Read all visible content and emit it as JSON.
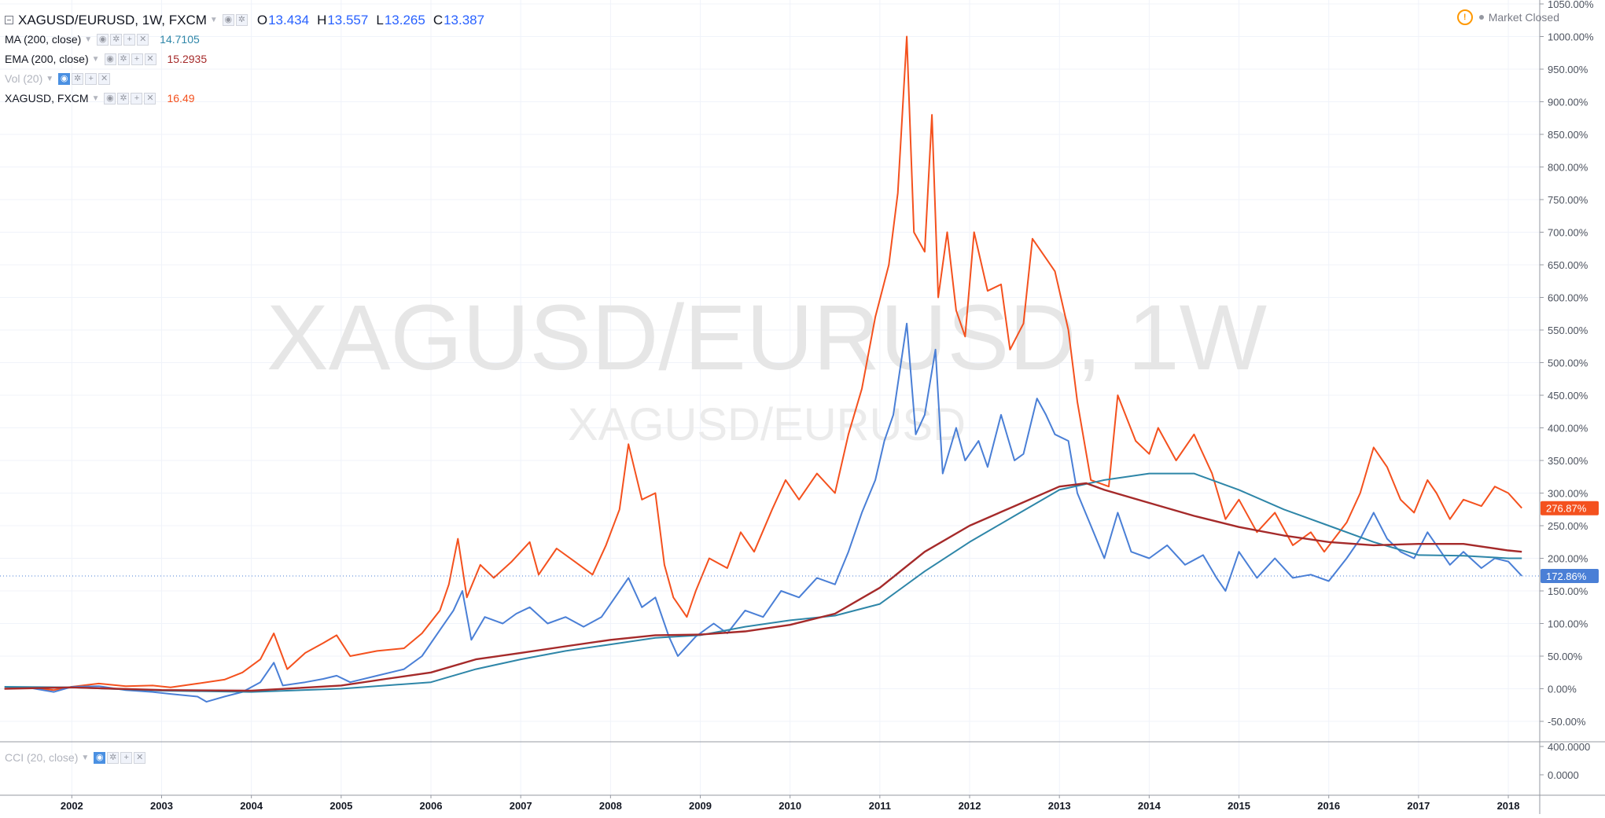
{
  "header": {
    "symbol": "XAGUSD/EURUSD, 1W, FXCM",
    "ohlc": [
      {
        "k": "O",
        "v": "13.434"
      },
      {
        "k": "H",
        "v": "13.557"
      },
      {
        "k": "L",
        "v": "13.265"
      },
      {
        "k": "C",
        "v": "13.387"
      }
    ]
  },
  "indicators": [
    {
      "label": "MA (200, close)",
      "value": "14.7105",
      "color": "#2e86a8"
    },
    {
      "label": "EMA (200, close)",
      "value": "15.2935",
      "color": "#a52a2a"
    },
    {
      "label": "Vol (20)",
      "value": "",
      "color": "#b2b5be"
    },
    {
      "label": "XAGUSD, FXCM",
      "value": "16.49",
      "color": "#f4511e"
    }
  ],
  "market_status": "Market Closed",
  "watermark": {
    "main": "XAGUSD/EURUSD, 1W",
    "sub": "XAGUSD/EURUSD"
  },
  "cci_legend": "CCI (20, close)",
  "colors": {
    "xagusd_eurusd": "#4a7fd6",
    "xagusd": "#f4511e",
    "ma": "#2e86a8",
    "ema": "#a52a2a"
  },
  "chart_data": {
    "type": "line",
    "ylabel": "",
    "y_unit": "%",
    "ylim": [
      -60,
      1050
    ],
    "xlim": [
      2001.2,
      2018.35
    ],
    "y_ticks": [
      "1050.00%",
      "1000.00%",
      "950.00%",
      "900.00%",
      "850.00%",
      "800.00%",
      "750.00%",
      "700.00%",
      "650.00%",
      "600.00%",
      "550.00%",
      "500.00%",
      "450.00%",
      "400.00%",
      "350.00%",
      "300.00%",
      "250.00%",
      "200.00%",
      "150.00%",
      "100.00%",
      "50.00%",
      "0.00%",
      "-50.00%"
    ],
    "y_tick_values": [
      1050,
      1000,
      950,
      900,
      850,
      800,
      750,
      700,
      650,
      600,
      550,
      500,
      450,
      400,
      350,
      300,
      250,
      200,
      150,
      100,
      50,
      0,
      -50
    ],
    "x_ticks": [
      "2002",
      "2003",
      "2004",
      "2005",
      "2006",
      "2007",
      "2008",
      "2009",
      "2010",
      "2011",
      "2012",
      "2013",
      "2014",
      "2015",
      "2016",
      "2017",
      "2018"
    ],
    "x_tick_values": [
      2002,
      2003,
      2004,
      2005,
      2006,
      2007,
      2008,
      2009,
      2010,
      2011,
      2012,
      2013,
      2014,
      2015,
      2016,
      2017,
      2018
    ],
    "last_value_labels": [
      {
        "series": "XAGUSD, FXCM",
        "text": "276.87%",
        "value": 276.87,
        "color": "#f4511e"
      },
      {
        "series": "XAGUSD/EURUSD",
        "text": "172.86%",
        "value": 172.86,
        "color": "#4a7fd6"
      }
    ],
    "series": [
      {
        "name": "XAGUSD, FXCM",
        "color": "#f4511e",
        "points": [
          [
            2001.25,
            0
          ],
          [
            2001.5,
            2
          ],
          [
            2001.8,
            -2
          ],
          [
            2002.0,
            3
          ],
          [
            2002.3,
            8
          ],
          [
            2002.6,
            4
          ],
          [
            2002.9,
            5
          ],
          [
            2003.1,
            2
          ],
          [
            2003.4,
            8
          ],
          [
            2003.7,
            14
          ],
          [
            2003.9,
            25
          ],
          [
            2004.1,
            45
          ],
          [
            2004.25,
            85
          ],
          [
            2004.4,
            30
          ],
          [
            2004.6,
            55
          ],
          [
            2004.8,
            70
          ],
          [
            2004.95,
            82
          ],
          [
            2005.1,
            50
          ],
          [
            2005.4,
            58
          ],
          [
            2005.7,
            62
          ],
          [
            2005.9,
            85
          ],
          [
            2006.1,
            120
          ],
          [
            2006.2,
            160
          ],
          [
            2006.3,
            230
          ],
          [
            2006.4,
            140
          ],
          [
            2006.55,
            190
          ],
          [
            2006.7,
            170
          ],
          [
            2006.9,
            195
          ],
          [
            2007.1,
            225
          ],
          [
            2007.2,
            175
          ],
          [
            2007.4,
            215
          ],
          [
            2007.6,
            195
          ],
          [
            2007.8,
            175
          ],
          [
            2007.95,
            220
          ],
          [
            2008.1,
            275
          ],
          [
            2008.2,
            375
          ],
          [
            2008.35,
            290
          ],
          [
            2008.5,
            300
          ],
          [
            2008.6,
            190
          ],
          [
            2008.7,
            140
          ],
          [
            2008.85,
            110
          ],
          [
            2008.95,
            150
          ],
          [
            2009.1,
            200
          ],
          [
            2009.3,
            185
          ],
          [
            2009.45,
            240
          ],
          [
            2009.6,
            210
          ],
          [
            2009.8,
            275
          ],
          [
            2009.95,
            320
          ],
          [
            2010.1,
            290
          ],
          [
            2010.3,
            330
          ],
          [
            2010.5,
            300
          ],
          [
            2010.65,
            390
          ],
          [
            2010.8,
            460
          ],
          [
            2010.95,
            570
          ],
          [
            2011.1,
            650
          ],
          [
            2011.2,
            760
          ],
          [
            2011.3,
            1000
          ],
          [
            2011.38,
            700
          ],
          [
            2011.5,
            670
          ],
          [
            2011.58,
            880
          ],
          [
            2011.65,
            600
          ],
          [
            2011.75,
            700
          ],
          [
            2011.85,
            580
          ],
          [
            2011.95,
            540
          ],
          [
            2012.05,
            700
          ],
          [
            2012.2,
            610
          ],
          [
            2012.35,
            620
          ],
          [
            2012.45,
            520
          ],
          [
            2012.6,
            560
          ],
          [
            2012.7,
            690
          ],
          [
            2012.85,
            660
          ],
          [
            2012.95,
            640
          ],
          [
            2013.1,
            550
          ],
          [
            2013.2,
            440
          ],
          [
            2013.35,
            320
          ],
          [
            2013.55,
            310
          ],
          [
            2013.65,
            450
          ],
          [
            2013.85,
            380
          ],
          [
            2014.0,
            360
          ],
          [
            2014.1,
            400
          ],
          [
            2014.3,
            350
          ],
          [
            2014.5,
            390
          ],
          [
            2014.7,
            330
          ],
          [
            2014.85,
            260
          ],
          [
            2015.0,
            290
          ],
          [
            2015.2,
            240
          ],
          [
            2015.4,
            270
          ],
          [
            2015.6,
            220
          ],
          [
            2015.8,
            240
          ],
          [
            2015.95,
            210
          ],
          [
            2016.2,
            255
          ],
          [
            2016.35,
            300
          ],
          [
            2016.5,
            370
          ],
          [
            2016.65,
            340
          ],
          [
            2016.8,
            290
          ],
          [
            2016.95,
            270
          ],
          [
            2017.1,
            320
          ],
          [
            2017.2,
            300
          ],
          [
            2017.35,
            260
          ],
          [
            2017.5,
            290
          ],
          [
            2017.7,
            280
          ],
          [
            2017.85,
            310
          ],
          [
            2018.0,
            300
          ],
          [
            2018.15,
            277
          ]
        ]
      },
      {
        "name": "XAGUSD/EURUSD",
        "color": "#4a7fd6",
        "points": [
          [
            2001.25,
            0
          ],
          [
            2001.5,
            2
          ],
          [
            2001.8,
            -5
          ],
          [
            2002.0,
            3
          ],
          [
            2002.3,
            4
          ],
          [
            2002.6,
            -2
          ],
          [
            2002.9,
            -5
          ],
          [
            2003.1,
            -8
          ],
          [
            2003.4,
            -12
          ],
          [
            2003.5,
            -20
          ],
          [
            2003.7,
            -12
          ],
          [
            2003.9,
            -5
          ],
          [
            2004.1,
            10
          ],
          [
            2004.25,
            40
          ],
          [
            2004.35,
            5
          ],
          [
            2004.6,
            10
          ],
          [
            2004.8,
            15
          ],
          [
            2004.95,
            20
          ],
          [
            2005.1,
            10
          ],
          [
            2005.4,
            20
          ],
          [
            2005.7,
            30
          ],
          [
            2005.9,
            50
          ],
          [
            2006.1,
            90
          ],
          [
            2006.25,
            120
          ],
          [
            2006.35,
            150
          ],
          [
            2006.45,
            75
          ],
          [
            2006.6,
            110
          ],
          [
            2006.8,
            100
          ],
          [
            2006.95,
            115
          ],
          [
            2007.1,
            125
          ],
          [
            2007.3,
            100
          ],
          [
            2007.5,
            110
          ],
          [
            2007.7,
            95
          ],
          [
            2007.9,
            110
          ],
          [
            2008.1,
            150
          ],
          [
            2008.2,
            170
          ],
          [
            2008.35,
            125
          ],
          [
            2008.5,
            140
          ],
          [
            2008.65,
            80
          ],
          [
            2008.75,
            50
          ],
          [
            2008.95,
            80
          ],
          [
            2009.15,
            100
          ],
          [
            2009.3,
            85
          ],
          [
            2009.5,
            120
          ],
          [
            2009.7,
            110
          ],
          [
            2009.9,
            150
          ],
          [
            2010.1,
            140
          ],
          [
            2010.3,
            170
          ],
          [
            2010.5,
            160
          ],
          [
            2010.65,
            210
          ],
          [
            2010.8,
            270
          ],
          [
            2010.95,
            320
          ],
          [
            2011.05,
            380
          ],
          [
            2011.15,
            420
          ],
          [
            2011.3,
            560
          ],
          [
            2011.4,
            390
          ],
          [
            2011.5,
            420
          ],
          [
            2011.62,
            520
          ],
          [
            2011.7,
            330
          ],
          [
            2011.85,
            400
          ],
          [
            2011.95,
            350
          ],
          [
            2012.1,
            380
          ],
          [
            2012.2,
            340
          ],
          [
            2012.35,
            420
          ],
          [
            2012.5,
            350
          ],
          [
            2012.6,
            360
          ],
          [
            2012.75,
            445
          ],
          [
            2012.85,
            420
          ],
          [
            2012.95,
            390
          ],
          [
            2013.1,
            380
          ],
          [
            2013.2,
            300
          ],
          [
            2013.35,
            250
          ],
          [
            2013.5,
            200
          ],
          [
            2013.65,
            270
          ],
          [
            2013.8,
            210
          ],
          [
            2014.0,
            200
          ],
          [
            2014.2,
            220
          ],
          [
            2014.4,
            190
          ],
          [
            2014.6,
            205
          ],
          [
            2014.75,
            170
          ],
          [
            2014.85,
            150
          ],
          [
            2015.0,
            210
          ],
          [
            2015.2,
            170
          ],
          [
            2015.4,
            200
          ],
          [
            2015.6,
            170
          ],
          [
            2015.8,
            175
          ],
          [
            2016.0,
            165
          ],
          [
            2016.2,
            200
          ],
          [
            2016.35,
            230
          ],
          [
            2016.5,
            270
          ],
          [
            2016.65,
            230
          ],
          [
            2016.8,
            210
          ],
          [
            2016.95,
            200
          ],
          [
            2017.1,
            240
          ],
          [
            2017.2,
            220
          ],
          [
            2017.35,
            190
          ],
          [
            2017.5,
            210
          ],
          [
            2017.7,
            185
          ],
          [
            2017.85,
            200
          ],
          [
            2018.0,
            195
          ],
          [
            2018.15,
            173
          ]
        ]
      },
      {
        "name": "MA (200, close)",
        "color": "#2e86a8",
        "points": [
          [
            2001.25,
            3
          ],
          [
            2002.0,
            2
          ],
          [
            2003.0,
            -3
          ],
          [
            2004.0,
            -5
          ],
          [
            2005.0,
            0
          ],
          [
            2006.0,
            10
          ],
          [
            2006.5,
            30
          ],
          [
            2007.0,
            45
          ],
          [
            2007.5,
            58
          ],
          [
            2008.0,
            68
          ],
          [
            2008.5,
            78
          ],
          [
            2009.0,
            82
          ],
          [
            2009.5,
            95
          ],
          [
            2010.0,
            105
          ],
          [
            2010.5,
            112
          ],
          [
            2011.0,
            130
          ],
          [
            2011.5,
            180
          ],
          [
            2012.0,
            225
          ],
          [
            2012.5,
            265
          ],
          [
            2013.0,
            305
          ],
          [
            2013.5,
            320
          ],
          [
            2014.0,
            330
          ],
          [
            2014.5,
            330
          ],
          [
            2015.0,
            305
          ],
          [
            2015.5,
            275
          ],
          [
            2016.0,
            250
          ],
          [
            2016.5,
            225
          ],
          [
            2017.0,
            205
          ],
          [
            2017.5,
            204
          ],
          [
            2018.0,
            200
          ],
          [
            2018.15,
            200
          ]
        ]
      },
      {
        "name": "EMA (200, close)",
        "color": "#a52a2a",
        "points": [
          [
            2001.25,
            0
          ],
          [
            2002.0,
            2
          ],
          [
            2003.0,
            -2
          ],
          [
            2004.0,
            -3
          ],
          [
            2005.0,
            5
          ],
          [
            2005.5,
            15
          ],
          [
            2006.0,
            25
          ],
          [
            2006.5,
            45
          ],
          [
            2007.0,
            55
          ],
          [
            2007.5,
            65
          ],
          [
            2008.0,
            75
          ],
          [
            2008.5,
            82
          ],
          [
            2009.0,
            83
          ],
          [
            2009.5,
            88
          ],
          [
            2010.0,
            98
          ],
          [
            2010.5,
            115
          ],
          [
            2011.0,
            155
          ],
          [
            2011.5,
            210
          ],
          [
            2012.0,
            250
          ],
          [
            2012.5,
            280
          ],
          [
            2013.0,
            310
          ],
          [
            2013.3,
            315
          ],
          [
            2013.5,
            305
          ],
          [
            2014.0,
            285
          ],
          [
            2014.5,
            265
          ],
          [
            2015.0,
            248
          ],
          [
            2015.5,
            235
          ],
          [
            2016.0,
            225
          ],
          [
            2016.5,
            220
          ],
          [
            2017.0,
            222
          ],
          [
            2017.5,
            222
          ],
          [
            2018.0,
            212
          ],
          [
            2018.15,
            210
          ]
        ]
      }
    ],
    "cci_pane": {
      "y_ticks": [
        "400.0000",
        "0.0000"
      ],
      "y_tick_values": [
        400,
        0
      ]
    }
  }
}
